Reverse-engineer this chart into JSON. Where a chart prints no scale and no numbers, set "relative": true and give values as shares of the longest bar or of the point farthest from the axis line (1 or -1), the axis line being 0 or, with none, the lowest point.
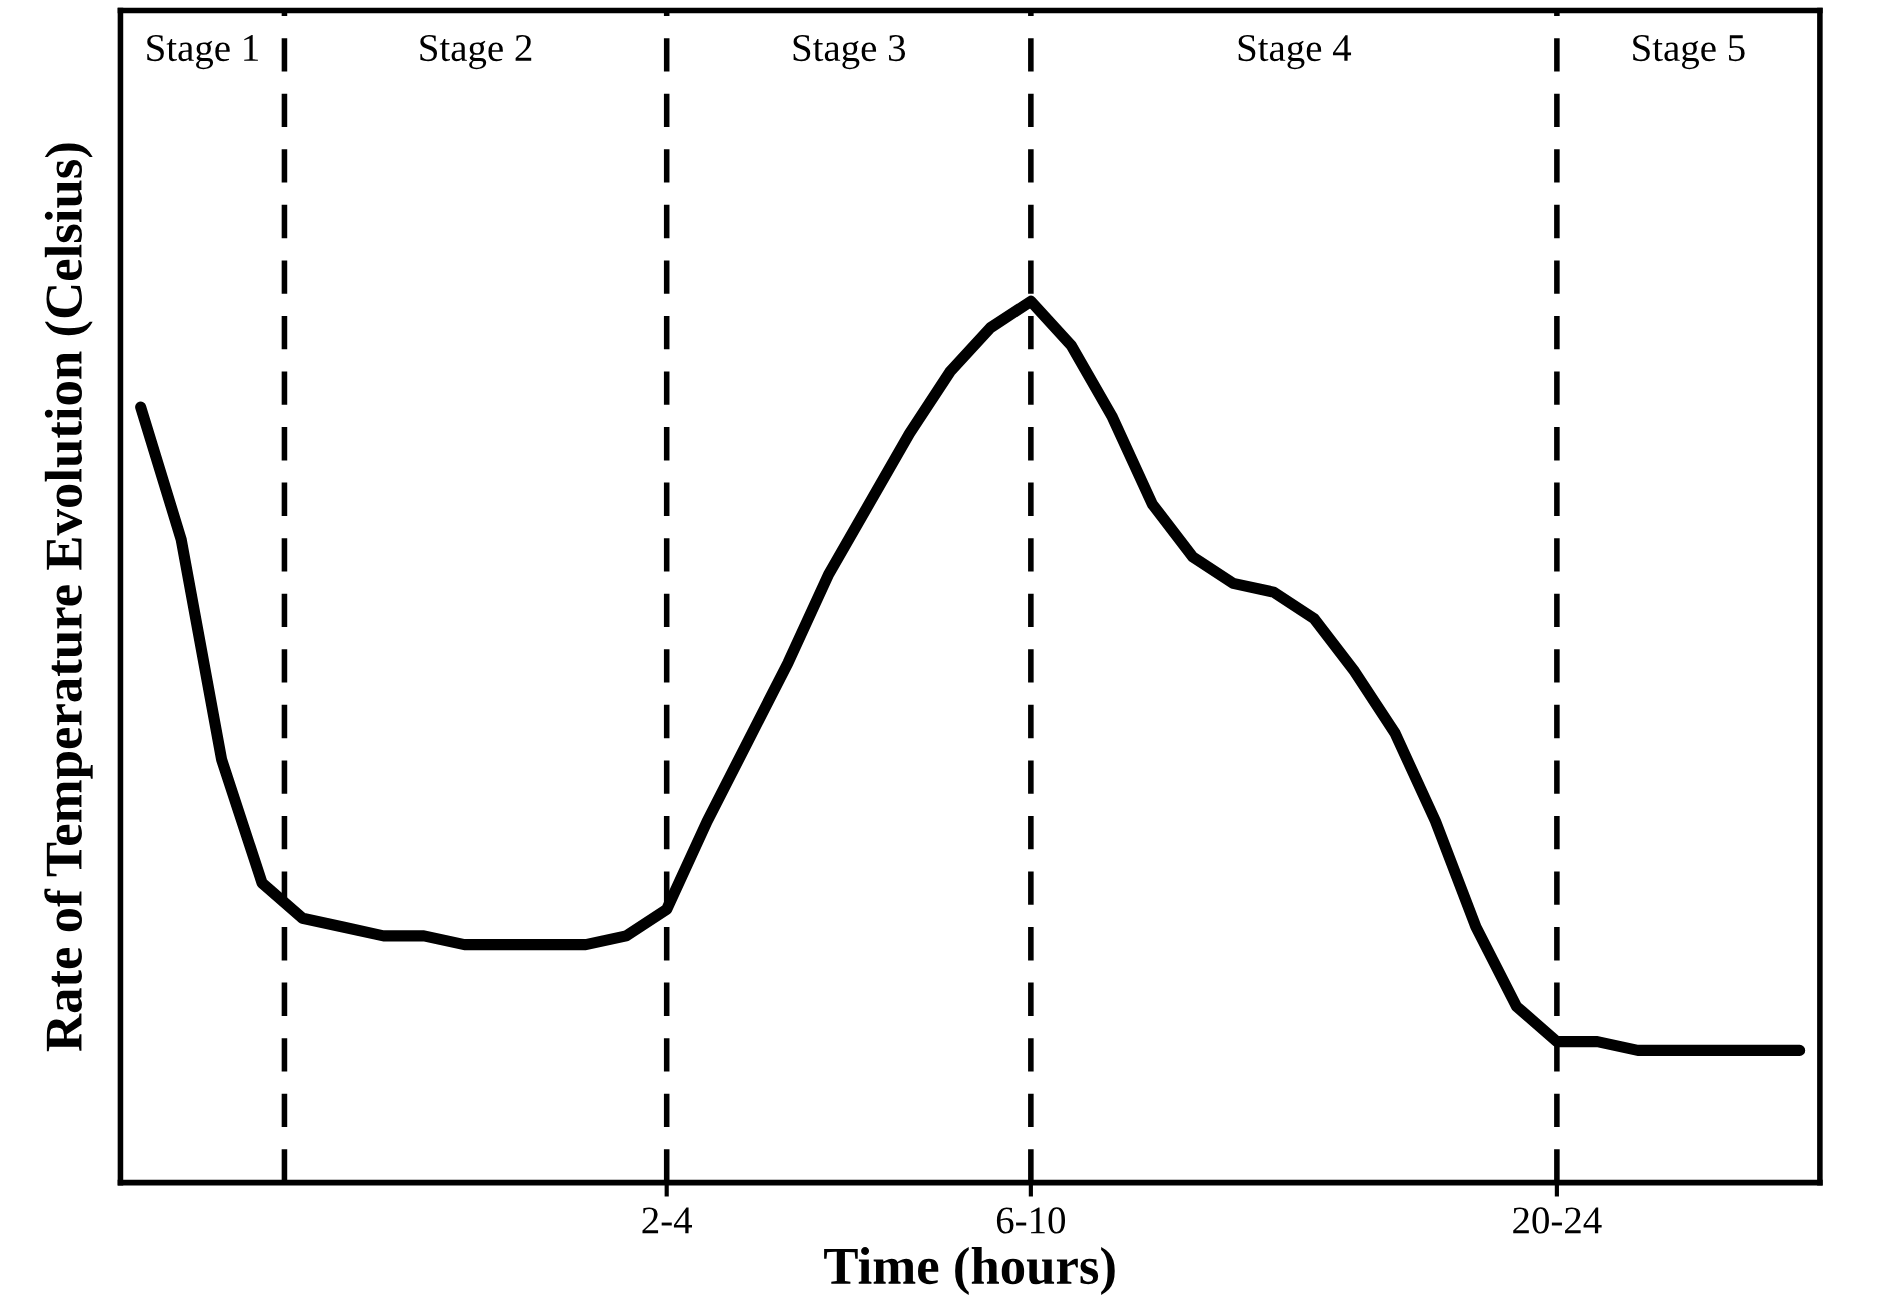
{
  "chart_data": {
    "type": "line",
    "relative": true,
    "xlabel": "Time (hours)",
    "ylabel": "Rate of Temperature Evolution (Celsius)",
    "categories": [
      null,
      null,
      null,
      null,
      null,
      null,
      null,
      null,
      null,
      null,
      null,
      null,
      null,
      "2-4",
      null,
      null,
      null,
      null,
      null,
      null,
      null,
      null,
      "6-10",
      null,
      null,
      null,
      null,
      null,
      null,
      null,
      null,
      null,
      null,
      null,
      null,
      "20-24",
      null,
      null,
      null,
      null,
      null,
      null
    ],
    "tick_labels": "x",
    "marker": "none",
    "line_style": "solid",
    "series": [
      {
        "color": "#000000",
        "values": [
          0.88,
          0.73,
          0.48,
          0.34,
          0.3,
          0.29,
          0.28,
          0.28,
          0.27,
          0.27,
          0.27,
          0.27,
          0.28,
          0.31,
          0.41,
          0.5,
          0.59,
          0.69,
          0.77,
          0.85,
          0.92,
          0.97,
          1,
          0.95,
          0.87,
          0.77,
          0.71,
          0.68,
          0.67,
          0.64,
          0.58,
          0.51,
          0.41,
          0.29,
          0.2,
          0.16,
          0.16,
          0.15,
          0.15,
          0.15,
          0.15,
          0.15
        ]
      }
    ],
    "grid": "x",
    "annotations": [
      "Stage 1",
      "Stage 2",
      "Stage 3",
      "Stage 4",
      "Stage 5"
    ]
  }
}
